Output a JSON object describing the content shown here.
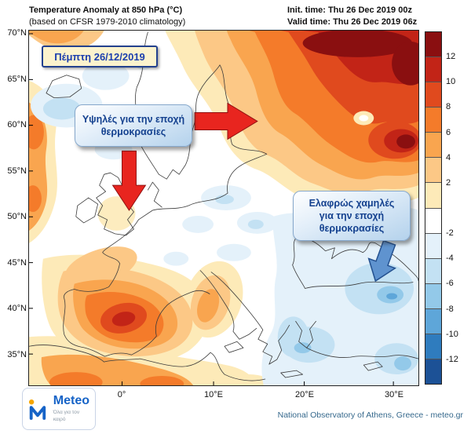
{
  "header": {
    "title": "Temperature Anomaly at 850 hPa (°C)",
    "subtitle": "(based on CFSR 1979-2010 climatology)",
    "init_time": "Init. time: Thu 26 Dec 2019 00z",
    "valid_time": "Valid time: Thu 26 Dec 2019 06z"
  },
  "axes": {
    "lat": [
      "70°N",
      "65°N",
      "60°N",
      "55°N",
      "50°N",
      "45°N",
      "40°N",
      "35°N"
    ],
    "lon": [
      "0°",
      "10°E",
      "20°E",
      "30°E"
    ]
  },
  "annotations": {
    "date_badge": "Πέμπτη 26/12/2019",
    "high": {
      "lines": [
        "Υψηλές για την εποχή",
        "θερμοκρασίες"
      ]
    },
    "low": {
      "lines": [
        "Ελαφρώς χαμηλές",
        "για την εποχή",
        "θερμοκρασίες"
      ]
    }
  },
  "colorbar": {
    "segments": [
      {
        "color": "#8a0f10",
        "label": "12"
      },
      {
        "color": "#c22417",
        "label": "10"
      },
      {
        "color": "#e04a1e",
        "label": "8"
      },
      {
        "color": "#f47b2a",
        "label": "6"
      },
      {
        "color": "#f9a54f",
        "label": "4"
      },
      {
        "color": "#fcc886",
        "label": "2"
      },
      {
        "color": "#fdeab8",
        "label": ""
      },
      {
        "color": "#ffffff",
        "label": "-2"
      },
      {
        "color": "#e4f1fa",
        "label": "-4"
      },
      {
        "color": "#c3e1f3",
        "label": "-6"
      },
      {
        "color": "#93c9e9",
        "label": "-8"
      },
      {
        "color": "#5ea6d9",
        "label": "-10"
      },
      {
        "color": "#2f7cbe",
        "label": "-12"
      },
      {
        "color": "#1c5196",
        "label": ""
      }
    ]
  },
  "footer": {
    "logo_name": "Meteo",
    "logo_tagline": "Όλα για τον καιρό",
    "attribution": "National Observatory of Athens, Greece - meteo.gr"
  }
}
